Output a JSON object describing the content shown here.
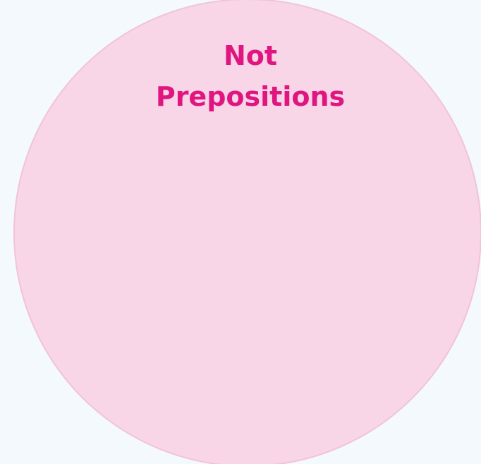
{
  "diagram": {
    "circle": {
      "label": "Not Prepositions"
    }
  }
}
